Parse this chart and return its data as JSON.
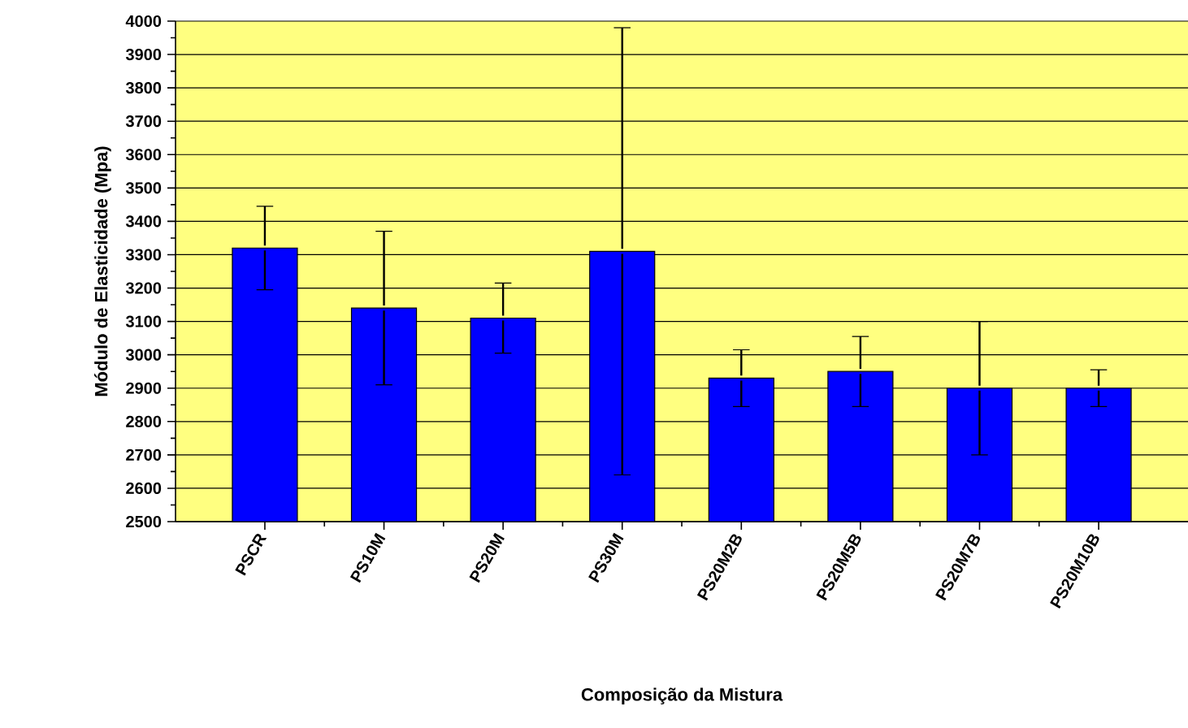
{
  "chart_data": {
    "type": "bar",
    "xlabel": "Composição da Mistura",
    "ylabel": "Módulo de Elasticidade (Mpa)",
    "categories": [
      "PSCR",
      "PS10M",
      "PS20M",
      "PS30M",
      "PS20M2B",
      "PS20M5B",
      "PS20M7B",
      "PS20M10B"
    ],
    "values": [
      3320,
      3140,
      3110,
      3310,
      2930,
      2950,
      2900,
      2900
    ],
    "errors": [
      125,
      230,
      105,
      670,
      85,
      105,
      200,
      55
    ],
    "color": "#0000ff",
    "ylim": [
      2500,
      4000
    ],
    "yticks": [
      2500,
      2600,
      2700,
      2800,
      2900,
      3000,
      3100,
      3200,
      3300,
      3400,
      3500,
      3600,
      3700,
      3800,
      3900,
      4000
    ],
    "grid": "y"
  }
}
